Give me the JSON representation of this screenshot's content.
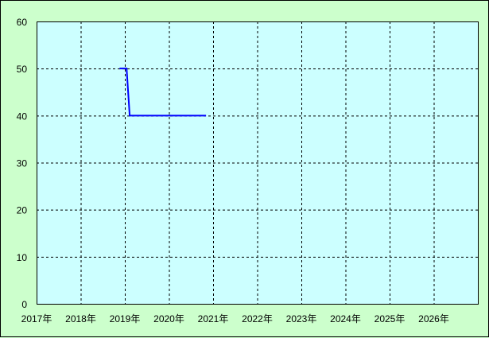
{
  "chart_data": {
    "type": "line",
    "title": "",
    "xlabel": "",
    "ylabel": "",
    "xlim": [
      2017,
      2027
    ],
    "ylim": [
      0,
      60
    ],
    "x_tick_labels": [
      "2017年",
      "2018年",
      "2019年",
      "2020年",
      "2021年",
      "2022年",
      "2023年",
      "2024年",
      "2025年",
      "2026年"
    ],
    "y_tick_labels": [
      "0",
      "10",
      "20",
      "30",
      "40",
      "50",
      "60"
    ],
    "grid": true,
    "colors": {
      "background": "#ccffcc",
      "plot_background": "#ccffff",
      "line": "#0000ff",
      "grid": "#000000"
    },
    "series": [
      {
        "x": [
          2018.88,
          2019.04,
          2019.11,
          2020.84
        ],
        "y": [
          50,
          50,
          40,
          40
        ]
      }
    ]
  }
}
